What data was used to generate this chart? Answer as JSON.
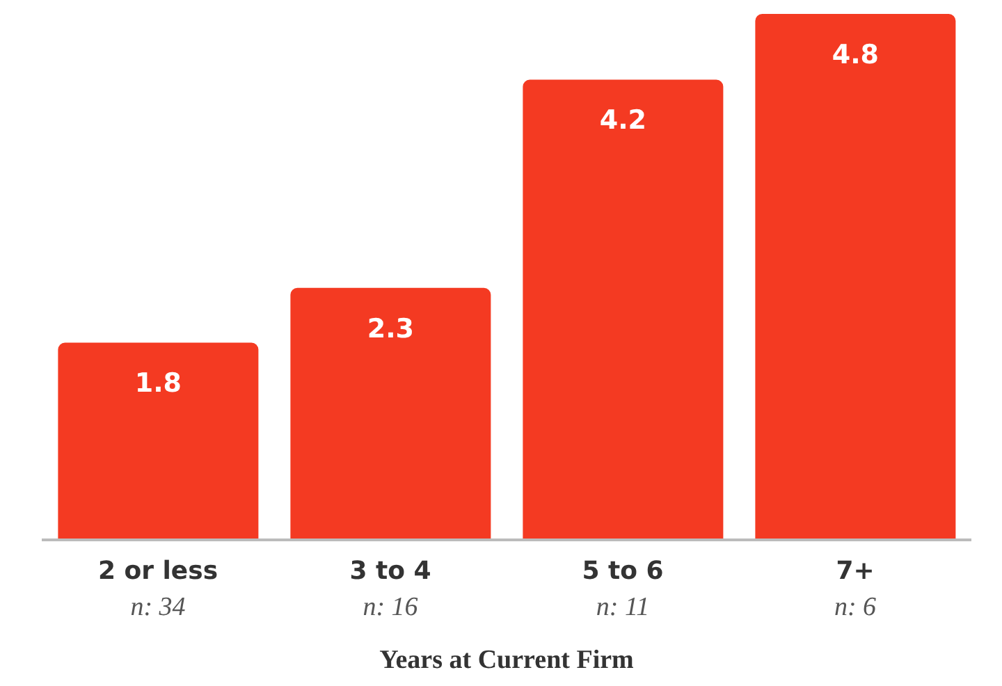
{
  "chart_data": {
    "type": "bar",
    "xlabel": "Years at Current Firm",
    "categories": [
      "2 or less",
      "3 to 4",
      "5 to 6",
      "7+"
    ],
    "values": [
      1.8,
      2.3,
      4.2,
      4.8
    ],
    "color": "#f43a22",
    "data_labels": true,
    "grid": false,
    "legend": false,
    "annotations": [
      "n: 34",
      "n: 16",
      "n: 11",
      "n: 6"
    ]
  }
}
